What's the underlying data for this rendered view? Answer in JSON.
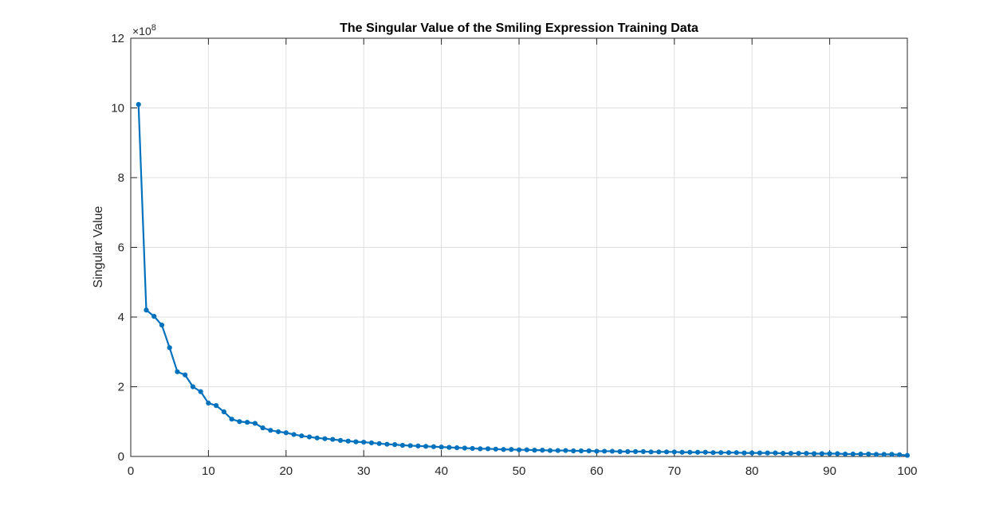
{
  "chart_data": {
    "type": "line",
    "title": "The Singular Value of the Smiling Expression Training Data",
    "xlabel": "",
    "ylabel": "Singular Value",
    "xlim": [
      0,
      100
    ],
    "ylim": [
      0,
      12
    ],
    "y_multiplier_base": "×10",
    "y_multiplier_exponent": "8",
    "xticks": [
      "0",
      "10",
      "20",
      "30",
      "40",
      "50",
      "60",
      "70",
      "80",
      "90",
      "100"
    ],
    "yticks": [
      "0",
      "2",
      "4",
      "6",
      "8",
      "10",
      "12"
    ],
    "grid": true,
    "marker": "circle",
    "color": "#0072BD",
    "series": [
      {
        "x": [
          1,
          2,
          3,
          4,
          5,
          6,
          7,
          8,
          9,
          10,
          11,
          12,
          13,
          14,
          15,
          16,
          17,
          18,
          19,
          20,
          21,
          22,
          23,
          24,
          25,
          26,
          27,
          28,
          29,
          30,
          31,
          32,
          33,
          34,
          35,
          36,
          37,
          38,
          39,
          40,
          41,
          42,
          43,
          44,
          45,
          46,
          47,
          48,
          49,
          50,
          51,
          52,
          53,
          54,
          55,
          56,
          57,
          58,
          59,
          60,
          61,
          62,
          63,
          64,
          65,
          66,
          67,
          68,
          69,
          70,
          71,
          72,
          73,
          74,
          75,
          76,
          77,
          78,
          79,
          80,
          81,
          82,
          83,
          84,
          85,
          86,
          87,
          88,
          89,
          90,
          91,
          92,
          93,
          94,
          95,
          96,
          97,
          98,
          99,
          100
        ],
        "values": [
          10.1,
          4.2,
          4.02,
          3.77,
          3.12,
          2.43,
          2.34,
          2.0,
          1.86,
          1.53,
          1.46,
          1.28,
          1.07,
          1.0,
          0.98,
          0.95,
          0.82,
          0.75,
          0.71,
          0.68,
          0.63,
          0.59,
          0.56,
          0.53,
          0.51,
          0.49,
          0.46,
          0.44,
          0.42,
          0.41,
          0.39,
          0.37,
          0.35,
          0.34,
          0.32,
          0.31,
          0.3,
          0.29,
          0.28,
          0.27,
          0.26,
          0.25,
          0.24,
          0.23,
          0.22,
          0.22,
          0.21,
          0.2,
          0.2,
          0.19,
          0.19,
          0.18,
          0.18,
          0.17,
          0.17,
          0.17,
          0.16,
          0.16,
          0.16,
          0.15,
          0.15,
          0.15,
          0.14,
          0.14,
          0.14,
          0.14,
          0.13,
          0.13,
          0.13,
          0.13,
          0.12,
          0.12,
          0.12,
          0.12,
          0.11,
          0.11,
          0.11,
          0.11,
          0.1,
          0.1,
          0.1,
          0.1,
          0.1,
          0.09,
          0.09,
          0.09,
          0.09,
          0.08,
          0.08,
          0.08,
          0.08,
          0.07,
          0.07,
          0.07,
          0.07,
          0.06,
          0.06,
          0.06,
          0.05,
          0.03
        ]
      }
    ]
  }
}
